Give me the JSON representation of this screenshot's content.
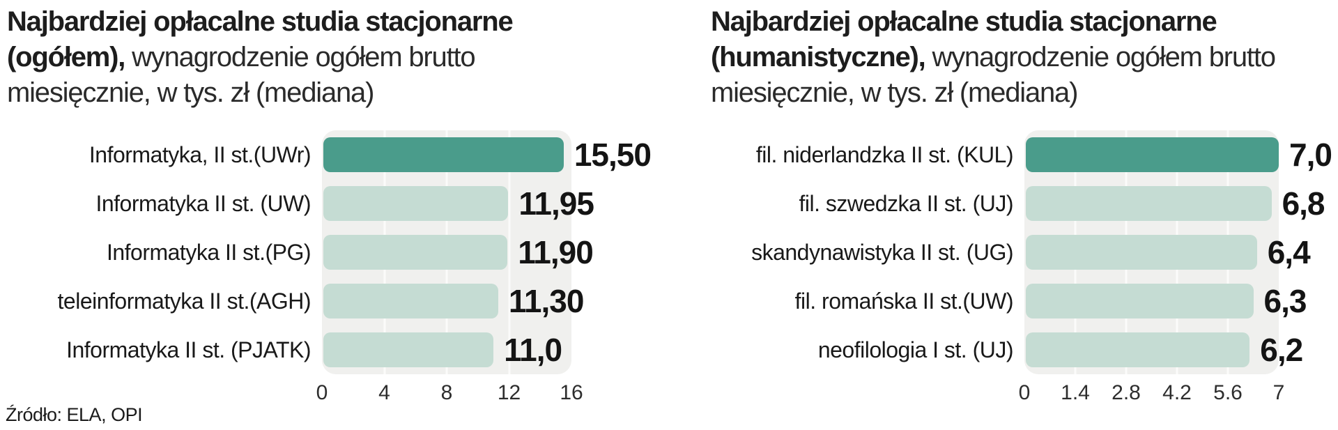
{
  "source_label": "Źródło: ELA, OPI",
  "colors": {
    "bar_highlight": "#4a9c8b",
    "bar_normal": "#c5dcd3",
    "track_background": "#f0f0ee",
    "gridline": "#fbfbfa",
    "text": "#1a1a1a"
  },
  "charts": [
    {
      "title_bold": "Najbardziej opłacalne studia stacjonarne (ogółem), ",
      "title_rest": "wynagrodzenie ogółem brutto miesięcznie, w tys. zł (mediana)"
    },
    {
      "title_bold": "Najbardziej opłacalne studia stacjonarne (humanistyczne), ",
      "title_rest": "wynagrodzenie ogółem brutto miesięcznie, w tys. zł (mediana)"
    }
  ],
  "chart_data": [
    {
      "type": "bar",
      "orientation": "horizontal",
      "title": "Najbardziej opłacalne studia stacjonarne (ogółem), wynagrodzenie ogółem brutto miesięcznie, w tys. zł (mediana)",
      "categories": [
        "Informatyka, II st.(UWr)",
        "Informatyka II st. (UW)",
        "Informatyka II st.(PG)",
        "teleinformatyka II st.(AGH)",
        "Informatyka II st. (PJATK)"
      ],
      "values": [
        15.5,
        11.95,
        11.9,
        11.3,
        11.0
      ],
      "value_labels": [
        "15,50",
        "11,95",
        "11,90",
        "11,30",
        "11,0"
      ],
      "highlight_index": 0,
      "x_ticks": [
        "0",
        "4",
        "8",
        "12",
        "16"
      ],
      "xlim": [
        0,
        16
      ],
      "grid": true,
      "legend": false
    },
    {
      "type": "bar",
      "orientation": "horizontal",
      "title": "Najbardziej opłacalne studia stacjonarne (humanistyczne), wynagrodzenie ogółem brutto miesięcznie, w tys. zł (mediana)",
      "categories": [
        "fil. niderlandzka II st. (KUL)",
        "fil. szwedzka II st. (UJ)",
        "skandynawistyka II st. (UG)",
        "fil. romańska II st.(UW)",
        "neofilologia I st. (UJ)"
      ],
      "values": [
        7.0,
        6.8,
        6.4,
        6.3,
        6.2
      ],
      "value_labels": [
        "7,0",
        "6,8",
        "6,4",
        "6,3",
        "6,2"
      ],
      "highlight_index": 0,
      "x_ticks": [
        "0",
        "1.4",
        "2.8",
        "4.2",
        "5.6",
        "7"
      ],
      "xlim": [
        0,
        7
      ],
      "grid": true,
      "legend": false
    }
  ]
}
